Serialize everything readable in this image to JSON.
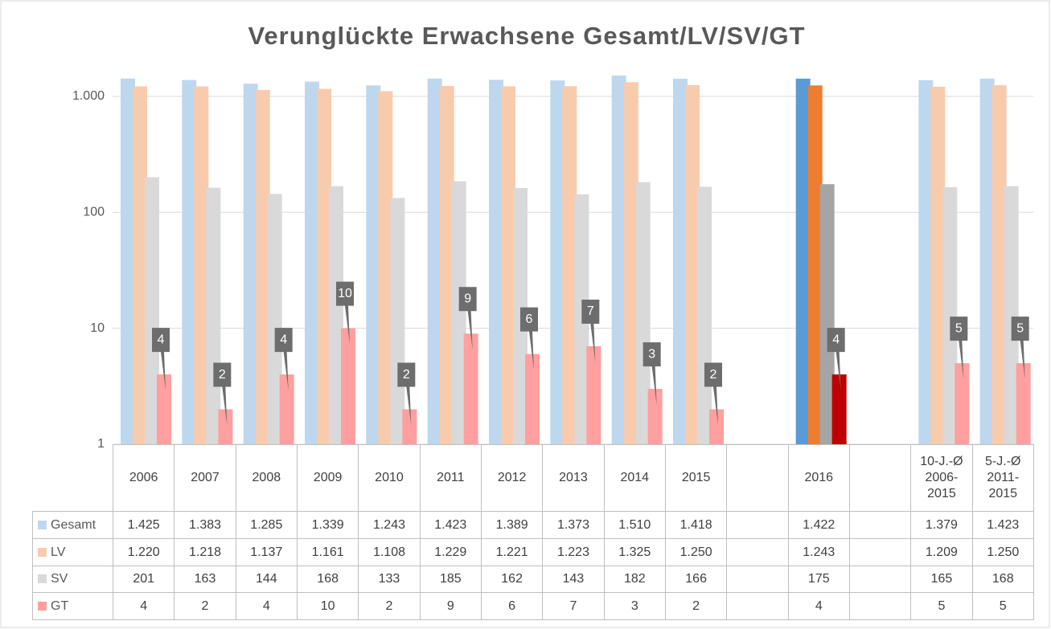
{
  "chart_data": {
    "type": "bar",
    "title": "Verunglückte Erwachsene Gesamt/LV/SV/GT",
    "categories": [
      "2006",
      "2007",
      "2008",
      "2009",
      "2010",
      "2011",
      "2012",
      "2013",
      "2014",
      "2015",
      null,
      "2016",
      null,
      "10-J.-Ø 2006-2015",
      "5-J.-Ø 2011-2015"
    ],
    "log_scale": true,
    "ylim": [
      1,
      2000
    ],
    "yticks": [
      1,
      10,
      100,
      {
        "value": 1000,
        "label": "1.000"
      }
    ],
    "grid": true,
    "highlight": "2016",
    "data_table": true,
    "series": [
      {
        "name": "Gesamt",
        "color": "#bdd7ee",
        "highlight_color": "#5b9bd5",
        "values": [
          1425,
          1383,
          1285,
          1339,
          1243,
          1423,
          1389,
          1373,
          1510,
          1418,
          null,
          1422,
          null,
          1379,
          1423
        ],
        "value_labels": [
          "1.425",
          "1.383",
          "1.285",
          "1.339",
          "1.243",
          "1.423",
          "1.389",
          "1.373",
          "1.510",
          "1.418",
          null,
          "1.422",
          null,
          "1.379",
          "1.423"
        ]
      },
      {
        "name": "LV",
        "color": "#f8cbad",
        "highlight_color": "#ed7d31",
        "values": [
          1220,
          1218,
          1137,
          1161,
          1108,
          1229,
          1221,
          1223,
          1325,
          1250,
          null,
          1243,
          null,
          1209,
          1250
        ],
        "value_labels": [
          "1.220",
          "1.218",
          "1.137",
          "1.161",
          "1.108",
          "1.229",
          "1.221",
          "1.223",
          "1.325",
          "1.250",
          null,
          "1.243",
          null,
          "1.209",
          "1.250"
        ]
      },
      {
        "name": "SV",
        "color": "#d9d9d9",
        "highlight_color": "#a5a5a5",
        "values": [
          201,
          163,
          144,
          168,
          133,
          185,
          162,
          143,
          182,
          166,
          null,
          175,
          null,
          165,
          168
        ]
      },
      {
        "name": "GT",
        "color": "#ff9f9f",
        "highlight_color": "#c00000",
        "data_labels": true,
        "values": [
          4,
          2,
          4,
          10,
          2,
          9,
          6,
          7,
          3,
          2,
          null,
          4,
          null,
          5,
          5
        ]
      }
    ]
  }
}
